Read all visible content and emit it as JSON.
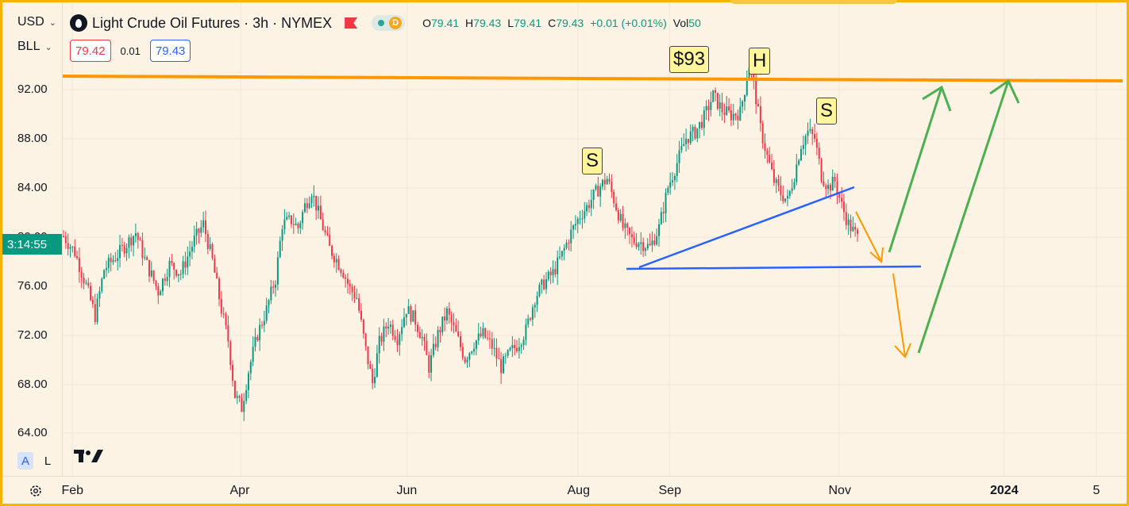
{
  "header": {
    "title": "Light Crude Oil Futures · 3h · NYMEX",
    "ohlc": [
      {
        "label": "O",
        "value": "79.41"
      },
      {
        "label": "H",
        "value": "79.43"
      },
      {
        "label": "L",
        "value": "79.41"
      },
      {
        "label": "C",
        "value": "79.43"
      }
    ],
    "change": "+0.01 (+0.01%)",
    "vol_label": "Vol",
    "vol_value": "50",
    "status_badge": "D"
  },
  "selectors": {
    "currency": "USD",
    "unit": "BLL"
  },
  "trade": {
    "sell_price": "79.42",
    "spread": "0.01",
    "buy_price": "79.43"
  },
  "countdown": "3:14:55",
  "scale_buttons": {
    "auto": "A",
    "log": "L"
  },
  "annotations": {
    "price_label": "$93",
    "left_shoulder": "S",
    "head": "H",
    "right_shoulder": "S"
  },
  "colors": {
    "up": "#089981",
    "down": "#f23645",
    "resistance": "#ff9800",
    "neckline": "#2962ff",
    "target_arrow": "#4caf50",
    "down_arrow": "#ff9800"
  },
  "chart_data": {
    "type": "line",
    "title": "Light Crude Oil Futures · 3h · NYMEX",
    "ylim": [
      62.2,
      97.5
    ],
    "yticks": [
      "92.00",
      "88.00",
      "84.00",
      "80.00",
      "76.00",
      "72.00",
      "68.00",
      "64.00"
    ],
    "xticks": [
      "Feb",
      "Apr",
      "Jun",
      "Aug",
      "Sep",
      "Nov",
      "2024",
      "5"
    ],
    "grid": true,
    "series": [
      {
        "values": [
          [
            0,
            79.5
          ],
          [
            5,
            78.2
          ],
          [
            10,
            75.5
          ],
          [
            14,
            73.0
          ],
          [
            18,
            76.8
          ],
          [
            24,
            78.0
          ],
          [
            32,
            79.8
          ],
          [
            36,
            77.6
          ],
          [
            42,
            75.0
          ],
          [
            47,
            77.2
          ],
          [
            52,
            76.5
          ],
          [
            58,
            79.2
          ],
          [
            62,
            80.5
          ],
          [
            66,
            77.5
          ],
          [
            70,
            73.5
          ],
          [
            73,
            71.0
          ],
          [
            76,
            66.5
          ],
          [
            79,
            65.5
          ],
          [
            82,
            68.5
          ],
          [
            86,
            71.5
          ],
          [
            90,
            73.5
          ],
          [
            93,
            75.5
          ],
          [
            94,
            76.0
          ],
          [
            97,
            80.5
          ],
          [
            101,
            80.8
          ],
          [
            104,
            80.2
          ],
          [
            107,
            82.0
          ],
          [
            110,
            83.2
          ],
          [
            114,
            80.8
          ],
          [
            118,
            78.5
          ],
          [
            121,
            77.6
          ],
          [
            124,
            76.6
          ],
          [
            127,
            75.2
          ],
          [
            130,
            74.5
          ],
          [
            134,
            70.2
          ],
          [
            137,
            67.5
          ],
          [
            140,
            70.8
          ],
          [
            144,
            72.5
          ],
          [
            148,
            71.2
          ],
          [
            152,
            73.6
          ],
          [
            156,
            72.6
          ],
          [
            159,
            71.2
          ],
          [
            162,
            68.8
          ],
          [
            166,
            71.5
          ],
          [
            170,
            73.3
          ],
          [
            174,
            71.5
          ],
          [
            178,
            69.5
          ],
          [
            182,
            70.8
          ],
          [
            186,
            71.5
          ],
          [
            190,
            70.5
          ],
          [
            194,
            68.8
          ],
          [
            198,
            70.0
          ],
          [
            201,
            70.6
          ],
          [
            205,
            71.8
          ],
          [
            209,
            74.5
          ],
          [
            213,
            75.7
          ],
          [
            217,
            76.5
          ],
          [
            221,
            78.0
          ],
          [
            225,
            79.8
          ],
          [
            229,
            81.2
          ],
          [
            232,
            81.9
          ],
          [
            235,
            82.8
          ],
          [
            238,
            83.6
          ],
          [
            241,
            84.2
          ],
          [
            244,
            82.5
          ],
          [
            248,
            80.2
          ],
          [
            252,
            79.2
          ],
          [
            256,
            79.0
          ],
          [
            260,
            78.6
          ],
          [
            264,
            80.2
          ],
          [
            268,
            83.5
          ],
          [
            272,
            85.5
          ],
          [
            276,
            87.5
          ],
          [
            280,
            88.0
          ],
          [
            284,
            89.2
          ],
          [
            288,
            91.0
          ],
          [
            292,
            89.8
          ],
          [
            296,
            89.4
          ],
          [
            300,
            89.6
          ],
          [
            302,
            91.5
          ],
          [
            304,
            93.5
          ],
          [
            306,
            92.0
          ],
          [
            309,
            88.3
          ],
          [
            312,
            86.0
          ],
          [
            315,
            84.0
          ],
          [
            318,
            83.0
          ],
          [
            321,
            82.4
          ],
          [
            324,
            84.5
          ],
          [
            327,
            87.0
          ],
          [
            330,
            88.0
          ],
          [
            333,
            87.5
          ],
          [
            336,
            84.5
          ],
          [
            339,
            83.5
          ],
          [
            342,
            84.0
          ],
          [
            345,
            82.0
          ],
          [
            348,
            80.5
          ],
          [
            352,
            79.4
          ]
        ]
      }
    ]
  }
}
